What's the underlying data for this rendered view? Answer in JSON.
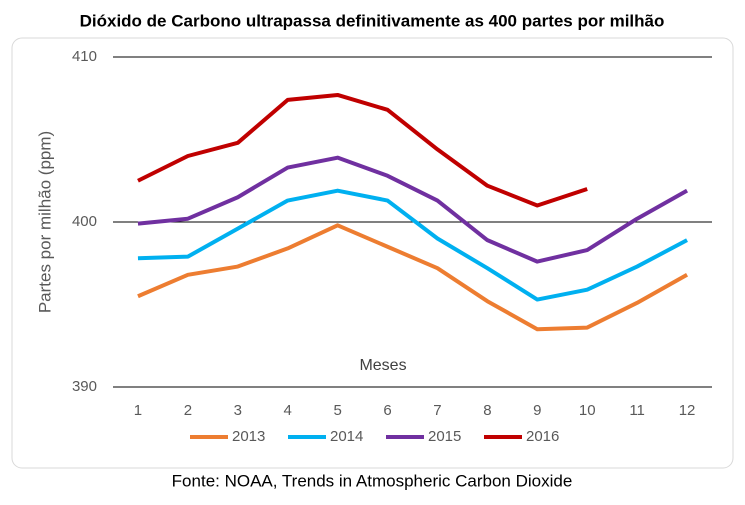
{
  "chart_data": {
    "type": "line",
    "title": "Dióxido de Carbono ultrapassa definitivamente as 400 partes por milhão",
    "y_label": "Partes por milhão (ppm)",
    "x_label": "Meses",
    "source": "Fonte: NOAA, Trends in Atmospheric Carbon Dioxide",
    "categories": [
      "1",
      "2",
      "3",
      "4",
      "5",
      "6",
      "7",
      "8",
      "9",
      "10",
      "11",
      "12"
    ],
    "series": [
      {
        "name": "2013",
        "color": "#ED7D31",
        "values": [
          395.5,
          396.8,
          397.3,
          398.4,
          399.8,
          398.5,
          397.2,
          395.2,
          393.5,
          393.6,
          395.1,
          396.8
        ]
      },
      {
        "name": "2014",
        "color": "#00B0F0",
        "values": [
          397.8,
          397.9,
          399.6,
          401.3,
          401.9,
          401.3,
          399.0,
          397.2,
          395.3,
          395.9,
          397.3,
          398.9
        ]
      },
      {
        "name": "2015",
        "color": "#7030A0",
        "values": [
          399.9,
          400.2,
          401.5,
          403.3,
          403.9,
          402.8,
          401.3,
          398.9,
          397.6,
          398.3,
          400.2,
          401.9
        ]
      },
      {
        "name": "2016",
        "color": "#C00000",
        "values": [
          402.5,
          404.0,
          404.8,
          407.4,
          407.7,
          406.8,
          404.4,
          402.2,
          401.0,
          402.0,
          null,
          null
        ]
      }
    ],
    "ylim": [
      390,
      410
    ],
    "yticks": [
      390,
      400,
      410
    ],
    "grid": true,
    "legend": "bottom"
  }
}
